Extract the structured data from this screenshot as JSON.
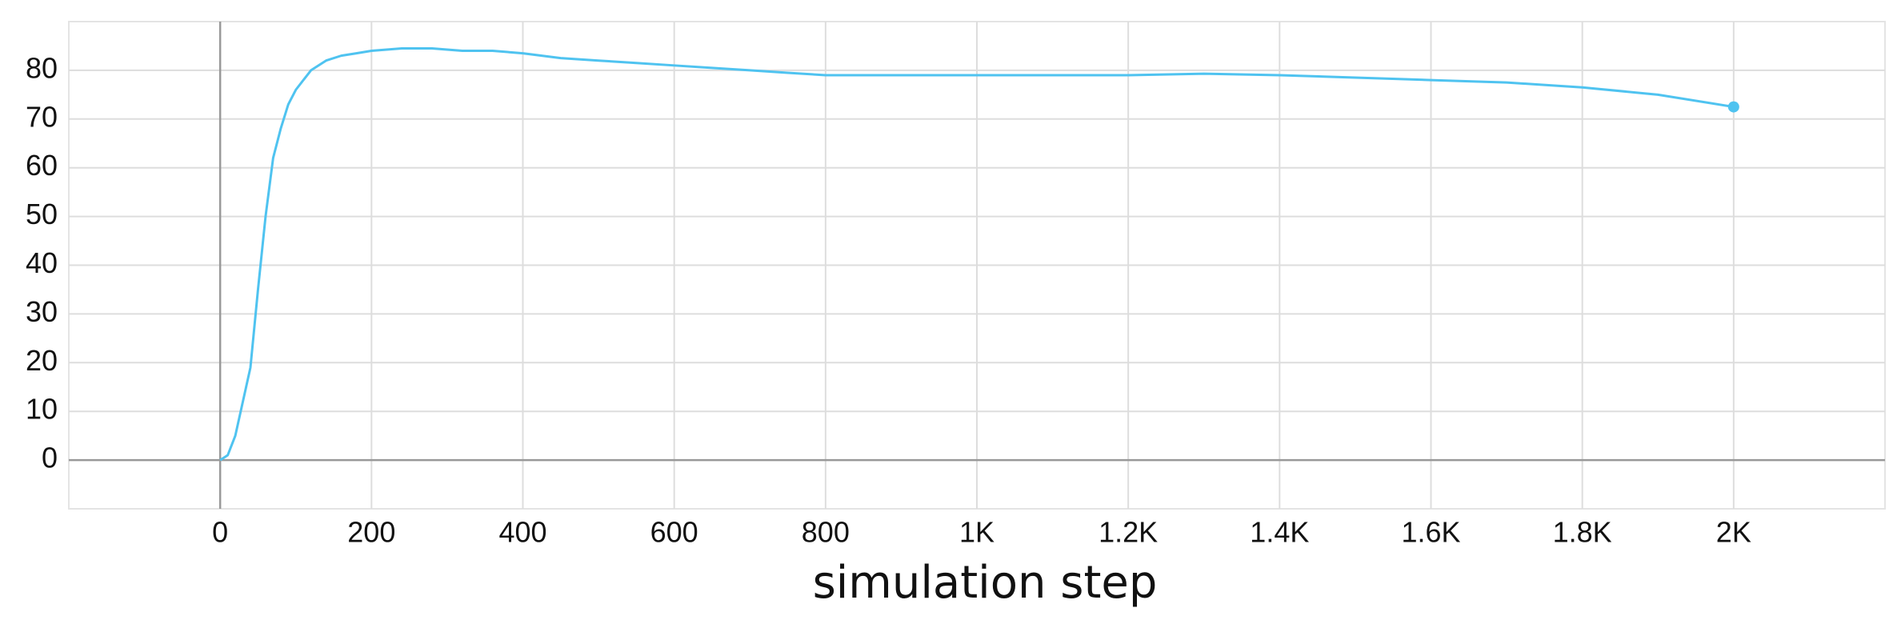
{
  "chart_data": {
    "type": "line",
    "x_label": "simulation step",
    "x": [
      0,
      10,
      20,
      30,
      40,
      50,
      60,
      70,
      80,
      90,
      100,
      120,
      140,
      160,
      180,
      200,
      240,
      280,
      320,
      360,
      400,
      450,
      500,
      550,
      600,
      650,
      700,
      750,
      800,
      850,
      900,
      1000,
      1100,
      1200,
      1300,
      1400,
      1500,
      1600,
      1700,
      1800,
      1900,
      2000
    ],
    "series": [
      {
        "color": "#4fc3f0",
        "values": [
          0,
          1,
          5,
          12,
          19,
          35,
          50,
          62,
          68,
          73,
          76,
          80,
          82,
          83,
          83.5,
          84,
          84.5,
          84.5,
          84,
          84,
          83.5,
          82.5,
          82,
          81.5,
          81,
          80.5,
          80,
          79.5,
          79,
          79,
          79,
          79,
          79,
          79,
          79.3,
          79,
          78.5,
          78,
          77.5,
          76.5,
          75,
          72.5
        ]
      }
    ],
    "xlim": [
      -200,
      2200
    ],
    "ylim": [
      -10,
      90
    ],
    "xticks": [
      0,
      200,
      400,
      600,
      800,
      {
        "value": 1000,
        "label": "1K"
      },
      {
        "value": 1200,
        "label": "1.2K"
      },
      {
        "value": 1400,
        "label": "1.4K"
      },
      {
        "value": 1600,
        "label": "1.6K"
      },
      {
        "value": 1800,
        "label": "1.8K"
      },
      {
        "value": 2000,
        "label": "2K"
      }
    ],
    "yticks": [
      0,
      10,
      20,
      30,
      40,
      50,
      60,
      70,
      80
    ],
    "grid": true
  }
}
